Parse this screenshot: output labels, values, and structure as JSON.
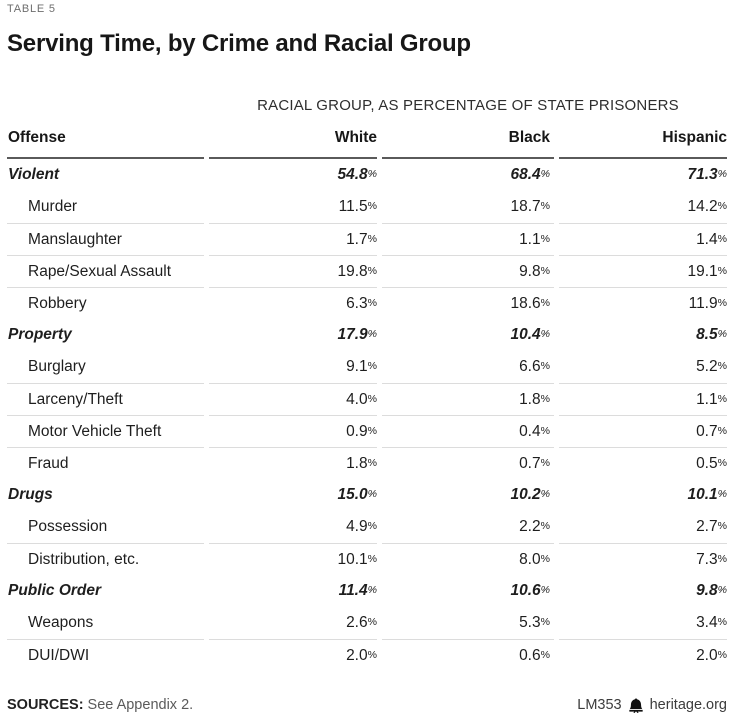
{
  "table_label": "TABLE 5",
  "chart_data": {
    "type": "table",
    "title": "Serving Time, by Crime and Racial Group",
    "subtitle": "RACIAL GROUP, AS PERCENTAGE OF STATE PRISONERS",
    "columns": [
      "Offense",
      "White",
      "Black",
      "Hispanic"
    ],
    "rows": [
      {
        "label": "Violent",
        "type": "category",
        "values": [
          "54.8%",
          "68.4%",
          "71.3%"
        ]
      },
      {
        "label": "Murder",
        "type": "sub",
        "values": [
          "11.5%",
          "18.7%",
          "14.2%"
        ]
      },
      {
        "label": "Manslaughter",
        "type": "sub",
        "values": [
          "1.7%",
          "1.1%",
          "1.4%"
        ]
      },
      {
        "label": "Rape/Sexual Assault",
        "type": "sub",
        "values": [
          "19.8%",
          "9.8%",
          "19.1%"
        ]
      },
      {
        "label": "Robbery",
        "type": "sub",
        "values": [
          "6.3%",
          "18.6%",
          "11.9%"
        ]
      },
      {
        "label": "Property",
        "type": "category",
        "values": [
          "17.9%",
          "10.4%",
          "8.5%"
        ]
      },
      {
        "label": "Burglary",
        "type": "sub",
        "values": [
          "9.1%",
          "6.6%",
          "5.2%"
        ]
      },
      {
        "label": "Larceny/Theft",
        "type": "sub",
        "values": [
          "4.0%",
          "1.8%",
          "1.1%"
        ]
      },
      {
        "label": "Motor Vehicle Theft",
        "type": "sub",
        "values": [
          "0.9%",
          "0.4%",
          "0.7%"
        ]
      },
      {
        "label": "Fraud",
        "type": "sub",
        "values": [
          "1.8%",
          "0.7%",
          "0.5%"
        ]
      },
      {
        "label": "Drugs",
        "type": "category",
        "values": [
          "15.0%",
          "10.2%",
          "10.1%"
        ]
      },
      {
        "label": "Possession",
        "type": "sub",
        "values": [
          "4.9%",
          "2.2%",
          "2.7%"
        ]
      },
      {
        "label": "Distribution, etc.",
        "type": "sub",
        "values": [
          "10.1%",
          "8.0%",
          "7.3%"
        ]
      },
      {
        "label": "Public Order",
        "type": "category",
        "values": [
          "11.4%",
          "10.6%",
          "9.8%"
        ]
      },
      {
        "label": "Weapons",
        "type": "sub",
        "values": [
          "2.6%",
          "5.3%",
          "3.4%"
        ]
      },
      {
        "label": "DUI/DWI",
        "type": "sub",
        "values": [
          "2.0%",
          "0.6%",
          "2.0%"
        ]
      }
    ]
  },
  "footer": {
    "sources_label": "SOURCES:",
    "sources_text": "See Appendix 2.",
    "doc_id": "LM353",
    "site": "heritage.org",
    "logo_icon": "liberty-bell-icon"
  },
  "colors": {
    "text": "#1e1e1e",
    "muted_label": "#6e6e6e",
    "header_rule": "#5a5a5a",
    "row_rule": "#dcdcdc",
    "footer_text": "#5a5a5a"
  }
}
